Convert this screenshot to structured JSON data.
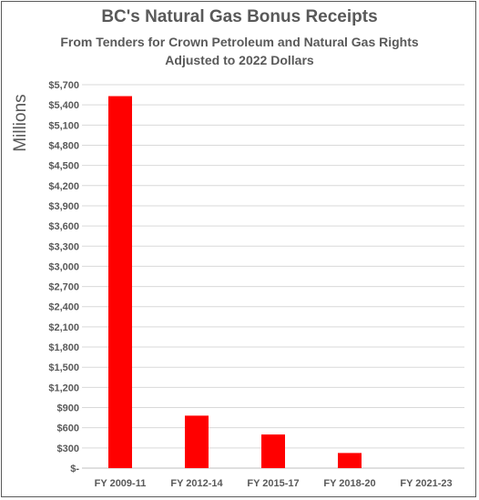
{
  "chart_data": {
    "type": "bar",
    "title": "BC's Natural Gas Bonus Receipts",
    "subtitle_lines": [
      "From Tenders for Crown Petroleum and Natural Gas Rights",
      "Adjusted to 2022 Dollars"
    ],
    "ylabel": "Millions",
    "xlabel": "",
    "categories": [
      "FY 2009-11",
      "FY 2012-14",
      "FY 2015-17",
      "FY 2018-20",
      "FY 2021-23"
    ],
    "values": [
      5530,
      780,
      500,
      225,
      0
    ],
    "ylim": [
      0,
      5700
    ],
    "yticks": [
      0,
      300,
      600,
      900,
      1200,
      1500,
      1800,
      2100,
      2400,
      2700,
      3000,
      3300,
      3600,
      3900,
      4200,
      4500,
      4800,
      5100,
      5400,
      5700
    ],
    "ytick_labels": [
      "$-",
      "$300",
      "$600",
      "$900",
      "$1,200",
      "$1,500",
      "$1,800",
      "$2,100",
      "$2,400",
      "$2,700",
      "$3,000",
      "$3,300",
      "$3,600",
      "$3,900",
      "$4,200",
      "$4,500",
      "$4,800",
      "$5,100",
      "$5,400",
      "$5,700"
    ],
    "grid": true,
    "legend": "none",
    "bar_color": "#ff0000",
    "grid_color": "#d9d9d9",
    "text_color": "#595959"
  }
}
